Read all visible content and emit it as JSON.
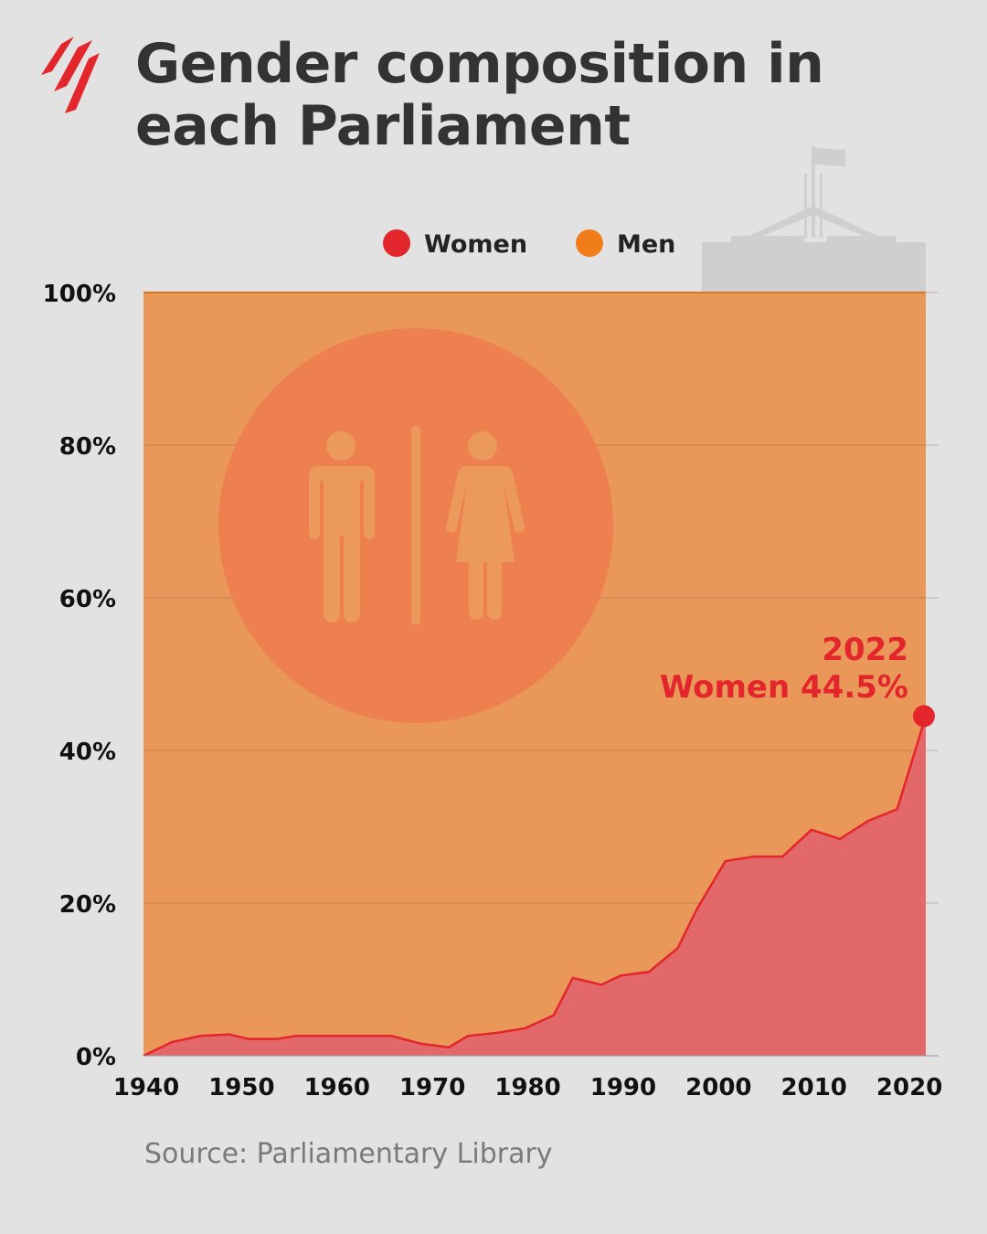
{
  "title": "Gender composition in each Parliament",
  "title_lines": [
    "Gender composition in",
    "each Parliament"
  ],
  "source": "Source: Parliamentary Library",
  "colors": {
    "background": "#e2e2e2",
    "women": "#e3262b",
    "women_fill": "#e2686a",
    "men": "#f07c1a",
    "men_fill": "#ea975a",
    "title": "#333333"
  },
  "icons": [
    "sbs-logo-icon",
    "parliament-house-icon",
    "restroom-man-woman-icon"
  ],
  "chart_data": {
    "type": "area",
    "title": "Gender composition in each Parliament",
    "xlabel": "",
    "ylabel": "",
    "xlim": [
      1940,
      2022
    ],
    "ylim": [
      0,
      100
    ],
    "x_ticks": [
      1940,
      1950,
      1960,
      1970,
      1980,
      1990,
      2000,
      2010,
      2020
    ],
    "y_ticks": [
      "0%",
      "20%",
      "40%",
      "60%",
      "80%",
      "100%"
    ],
    "y_tick_values": [
      0,
      20,
      40,
      60,
      80,
      100
    ],
    "grid": true,
    "stacked": true,
    "legend": {
      "position": "top",
      "entries": [
        "Women",
        "Men"
      ]
    },
    "x": [
      1940,
      1943,
      1946,
      1949,
      1951,
      1954,
      1956,
      1958,
      1961,
      1963,
      1966,
      1969,
      1972,
      1974,
      1977,
      1980,
      1983,
      1985,
      1988,
      1990,
      1993,
      1996,
      1998,
      2001,
      2004,
      2007,
      2010,
      2013,
      2016,
      2019,
      2022
    ],
    "series": [
      {
        "name": "Women",
        "values": [
          0,
          1.8,
          2.6,
          2.8,
          2.2,
          2.2,
          2.6,
          2.6,
          2.6,
          2.6,
          2.6,
          1.6,
          1.1,
          2.6,
          3.0,
          3.6,
          5.3,
          10.2,
          9.3,
          10.5,
          11.0,
          14.1,
          19.2,
          25.5,
          26.1,
          26.1,
          29.6,
          28.4,
          30.8,
          32.3,
          44.5
        ]
      },
      {
        "name": "Men",
        "values": [
          100,
          98.2,
          97.4,
          97.2,
          97.8,
          97.8,
          97.4,
          97.4,
          97.4,
          97.4,
          97.4,
          98.4,
          98.9,
          97.4,
          97.0,
          96.4,
          94.7,
          89.8,
          90.7,
          89.5,
          89.0,
          85.9,
          80.8,
          74.5,
          73.9,
          73.9,
          70.4,
          71.6,
          69.2,
          67.7,
          55.5
        ]
      }
    ],
    "annotation": {
      "year_label": "2022",
      "text": "Women 44.5%",
      "x": 2022,
      "y": 44.5
    }
  }
}
